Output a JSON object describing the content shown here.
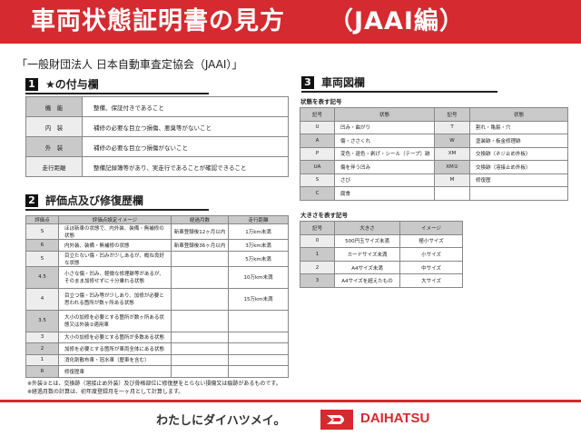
{
  "header": {
    "title": "車両状態証明書の見方",
    "subtitle": "（JAAI編）"
  },
  "organization": "「一般財団法人 日本自動車査定協会（JAAI）」",
  "section1": {
    "num": "1",
    "title": "★の付与欄",
    "rows": [
      {
        "label": "機　能",
        "text": "整備、保証付きであること"
      },
      {
        "label": "内　装",
        "text": "補修の必要な目立つ損傷、悪臭等がないこと"
      },
      {
        "label": "外　装",
        "text": "補修の必要な目立つ損傷がないこと"
      },
      {
        "label": "走行距離",
        "text": "整備記録簿等があり、実走行であることが確認できること"
      }
    ]
  },
  "section2": {
    "num": "2",
    "title": "評価点及び修復歴欄",
    "headers": [
      "評価点",
      "評価点設定イメージ",
      "経過月数",
      "走行距離"
    ],
    "rows": [
      [
        "S",
        "ほぼ新車の状態で、内外装、装備・無補修の状態",
        "新車登録後12ヶ月以内",
        "1万km未満"
      ],
      [
        "6",
        "内外装、装備・無補修の状態",
        "新車登録後36ヶ月以内",
        "3万km未満"
      ],
      [
        "5",
        "目立たない傷・凹みが少しあるが、概ね良好な状態",
        "",
        "5万km未満"
      ],
      [
        "4.5",
        "小さな傷・凹み、軽微な修理跡等があるが、そのまま加修せずに十分乗れる状態",
        "",
        "10万km未満"
      ],
      [
        "4",
        "目立つ傷・凹み等が少しあり、加修が必要と思われる箇所が数ヶ所ある状態",
        "",
        "15万km未満"
      ],
      [
        "3.5",
        "大小の加修を必要とする箇所が数ヶ所ある状態又は外装②適用車",
        "",
        ""
      ],
      [
        "3",
        "大小の加修を必要とする箇所が多数ある状態",
        "",
        ""
      ],
      [
        "2",
        "加修を必要とする箇所が車両全体にある状態",
        "",
        ""
      ],
      [
        "1",
        "消化剤散布車・冠水車（歴車を含む）",
        "",
        ""
      ],
      [
        "R",
        "修復歴車",
        "",
        ""
      ]
    ]
  },
  "notes": [
    "※外装②とは、交換跡（溶接止め外装）及び骨格部位に修復歴をとらない損傷又は痕跡があるものです。",
    "※経過月数の計算は、初年度登録月を一ヶ月として計算します。"
  ],
  "section3": {
    "num": "3",
    "title": "車両図欄",
    "state_caption": "状態を表す記号",
    "state_headers": [
      "記号",
      "状態",
      "記号",
      "状態"
    ],
    "state_rows": [
      [
        "U",
        "凹み・曲がり",
        "T",
        "割れ・亀裂・穴"
      ],
      [
        "A",
        "傷・ささくれ",
        "W",
        "塗装跡・板金修理跡"
      ],
      [
        "P",
        "変色・退色・剥げ・シール（テープ）跡",
        "XM",
        "交換跡（ネジ止め外板）"
      ],
      [
        "UA",
        "傷を伴う凹み",
        "XM②",
        "交換跡（溶接止め外板）"
      ],
      [
        "S",
        "さび",
        "M",
        "修復歴"
      ],
      [
        "C",
        "腐食",
        "",
        ""
      ]
    ],
    "size_caption": "大きさを表す記号",
    "size_headers": [
      "記号",
      "大きさ",
      "イメージ"
    ],
    "size_rows": [
      [
        "0",
        "500円玉サイズ未満",
        "極小サイズ"
      ],
      [
        "1",
        "カードサイズ未満",
        "小サイズ"
      ],
      [
        "2",
        "A4サイズ未満",
        "中サイズ"
      ],
      [
        "3",
        "A4サイズを超えたもの",
        "大サイズ"
      ]
    ]
  },
  "footer": {
    "slogan": "わたしにダイハツメイ。",
    "brand": "DAIHATSU"
  },
  "colors": {
    "accent": "#d42a30",
    "header_cell": "#c9c9c9"
  }
}
